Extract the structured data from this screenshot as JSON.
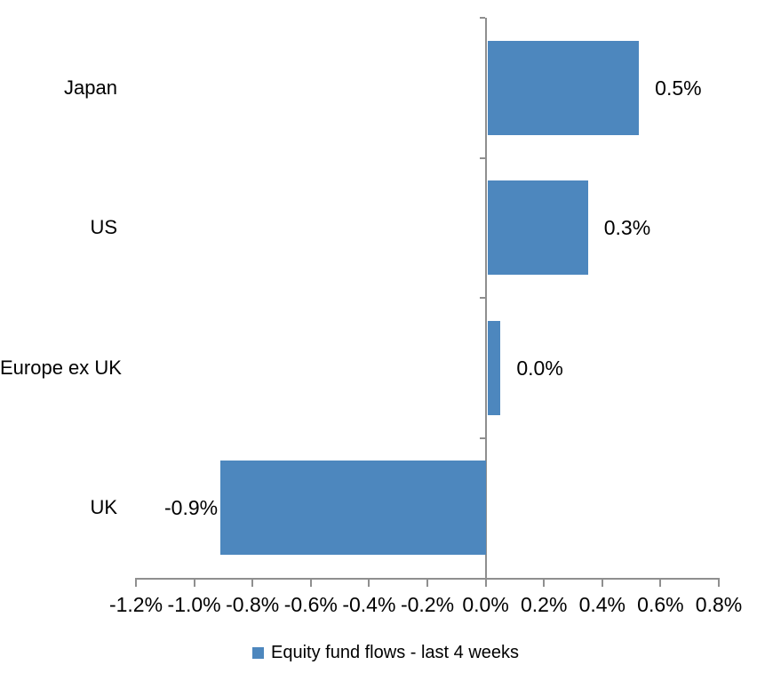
{
  "chart_data": {
    "type": "bar",
    "orientation": "horizontal",
    "title": "",
    "categories": [
      "Japan",
      "US",
      "Europe ex UK",
      "UK"
    ],
    "values": [
      0.5,
      0.3,
      0.0,
      -0.9
    ],
    "values_precise_pct": [
      0.52,
      0.345,
      0.045,
      -0.91
    ],
    "value_labels": [
      "0.5%",
      "0.3%",
      "0.0%",
      "-0.9%"
    ],
    "legend": "Equity fund flows - last 4 weeks",
    "legend_position": "bottom-center",
    "xlim": [
      -1.2,
      0.8
    ],
    "x_tick_step_pct": 0.2,
    "x_tick_labels": [
      "-1.2%",
      "-1.0%",
      "-0.8%",
      "-0.6%",
      "-0.4%",
      "-0.2%",
      "0.0%",
      "0.2%",
      "0.4%",
      "0.6%",
      "0.8%"
    ],
    "grid": false,
    "colors": {
      "bar": "#4D87BE",
      "axis": "#8F8F8F",
      "text": "#000000",
      "background": "#FFFFFF"
    }
  }
}
